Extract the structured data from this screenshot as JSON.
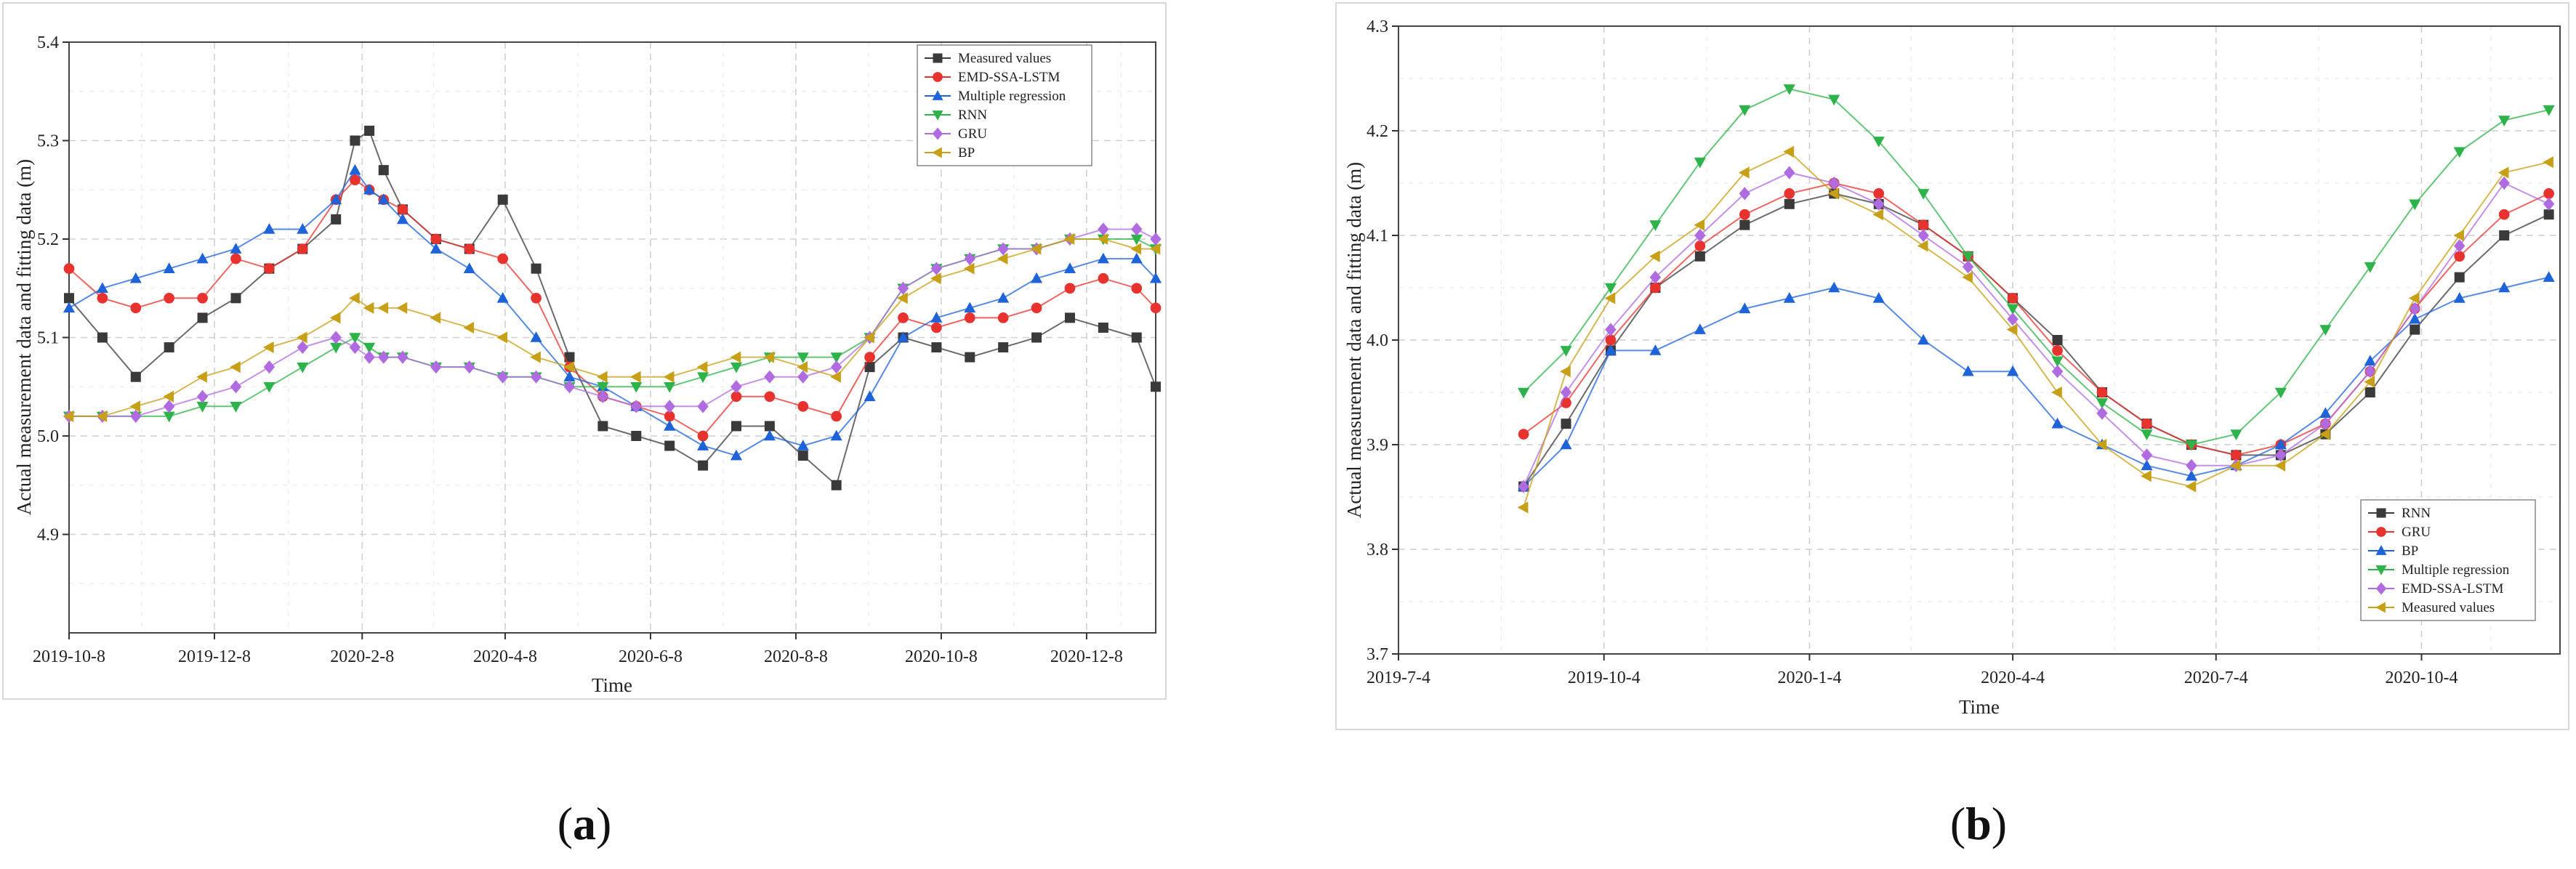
{
  "figure": {
    "captions": [
      "(a)",
      "(b)"
    ],
    "caption_letters": [
      "a",
      "b"
    ]
  },
  "chart_data": [
    {
      "type": "scatter",
      "panel": "a",
      "xlabel": "Time",
      "ylabel": "Actual measurement data and fitting data (m)",
      "xlim": [
        0,
        456
      ],
      "ylim": [
        4.8,
        5.4
      ],
      "x_ticks": [
        {
          "label": "2019-10-8",
          "value": 0
        },
        {
          "label": "2019-12-8",
          "value": 61
        },
        {
          "label": "2020-2-8",
          "value": 123
        },
        {
          "label": "2020-4-8",
          "value": 183
        },
        {
          "label": "2020-6-8",
          "value": 244
        },
        {
          "label": "2020-8-8",
          "value": 305
        },
        {
          "label": "2020-10-8",
          "value": 366
        },
        {
          "label": "2020-12-8",
          "value": 427
        }
      ],
      "y_ticks": [
        4.9,
        5.0,
        5.1,
        5.2,
        5.3,
        5.4
      ],
      "y_tick_labels": [
        "4.9",
        "5.0",
        "5.1",
        "5.2",
        "5.3",
        "5.4"
      ],
      "legend_position": "top-right",
      "series": [
        {
          "name": "Measured values",
          "marker": "square",
          "color": "#3a3a3a",
          "x": [
            0,
            14,
            28,
            42,
            56,
            70,
            84,
            98,
            112,
            120,
            126,
            132,
            140,
            154,
            168,
            182,
            196,
            210,
            224,
            238,
            252,
            266,
            280,
            294,
            308,
            322,
            336,
            350,
            364,
            378,
            392,
            406,
            420,
            434,
            448,
            456
          ],
          "y": [
            5.14,
            5.1,
            5.06,
            5.09,
            5.12,
            5.14,
            5.17,
            5.19,
            5.22,
            5.3,
            5.31,
            5.27,
            5.23,
            5.2,
            5.19,
            5.24,
            5.17,
            5.08,
            5.01,
            5.0,
            4.99,
            4.97,
            5.01,
            5.01,
            4.98,
            4.95,
            5.07,
            5.1,
            5.09,
            5.08,
            5.09,
            5.1,
            5.12,
            5.11,
            5.1,
            5.05
          ]
        },
        {
          "name": "EMD-SSA-LSTM",
          "marker": "circle",
          "color": "#e8322d",
          "x": [
            0,
            14,
            28,
            42,
            56,
            70,
            84,
            98,
            112,
            120,
            126,
            132,
            140,
            154,
            168,
            182,
            196,
            210,
            224,
            238,
            252,
            266,
            280,
            294,
            308,
            322,
            336,
            350,
            364,
            378,
            392,
            406,
            420,
            434,
            448,
            456
          ],
          "y": [
            5.17,
            5.14,
            5.13,
            5.14,
            5.14,
            5.18,
            5.17,
            5.19,
            5.24,
            5.26,
            5.25,
            5.24,
            5.23,
            5.2,
            5.19,
            5.18,
            5.14,
            5.07,
            5.04,
            5.03,
            5.02,
            5.0,
            5.04,
            5.04,
            5.03,
            5.02,
            5.08,
            5.12,
            5.11,
            5.12,
            5.12,
            5.13,
            5.15,
            5.16,
            5.15,
            5.13
          ]
        },
        {
          "name": "Multiple regression",
          "marker": "triangle-up",
          "color": "#1f63d8",
          "x": [
            0,
            14,
            28,
            42,
            56,
            70,
            84,
            98,
            112,
            120,
            126,
            132,
            140,
            154,
            168,
            182,
            196,
            210,
            224,
            238,
            252,
            266,
            280,
            294,
            308,
            322,
            336,
            350,
            364,
            378,
            392,
            406,
            420,
            434,
            448,
            456
          ],
          "y": [
            5.13,
            5.15,
            5.16,
            5.17,
            5.18,
            5.19,
            5.21,
            5.21,
            5.24,
            5.27,
            5.25,
            5.24,
            5.22,
            5.19,
            5.17,
            5.14,
            5.1,
            5.06,
            5.05,
            5.03,
            5.01,
            4.99,
            4.98,
            5.0,
            4.99,
            5.0,
            5.04,
            5.1,
            5.12,
            5.13,
            5.14,
            5.16,
            5.17,
            5.18,
            5.18,
            5.16
          ]
        },
        {
          "name": "RNN",
          "marker": "triangle-down",
          "color": "#2db34a",
          "x": [
            0,
            14,
            28,
            42,
            56,
            70,
            84,
            98,
            112,
            120,
            126,
            132,
            140,
            154,
            168,
            182,
            196,
            210,
            224,
            238,
            252,
            266,
            280,
            294,
            308,
            322,
            336,
            350,
            364,
            378,
            392,
            406,
            420,
            434,
            448,
            456
          ],
          "y": [
            5.02,
            5.02,
            5.02,
            5.02,
            5.03,
            5.03,
            5.05,
            5.07,
            5.09,
            5.1,
            5.09,
            5.08,
            5.08,
            5.07,
            5.07,
            5.06,
            5.06,
            5.05,
            5.05,
            5.05,
            5.05,
            5.06,
            5.07,
            5.08,
            5.08,
            5.08,
            5.1,
            5.15,
            5.17,
            5.18,
            5.19,
            5.19,
            5.2,
            5.2,
            5.2,
            5.19
          ]
        },
        {
          "name": "GRU",
          "marker": "diamond",
          "color": "#b06be0",
          "x": [
            0,
            14,
            28,
            42,
            56,
            70,
            84,
            98,
            112,
            120,
            126,
            132,
            140,
            154,
            168,
            182,
            196,
            210,
            224,
            238,
            252,
            266,
            280,
            294,
            308,
            322,
            336,
            350,
            364,
            378,
            392,
            406,
            420,
            434,
            448,
            456
          ],
          "y": [
            5.02,
            5.02,
            5.02,
            5.03,
            5.04,
            5.05,
            5.07,
            5.09,
            5.1,
            5.09,
            5.08,
            5.08,
            5.08,
            5.07,
            5.07,
            5.06,
            5.06,
            5.05,
            5.04,
            5.03,
            5.03,
            5.03,
            5.05,
            5.06,
            5.06,
            5.07,
            5.1,
            5.15,
            5.17,
            5.18,
            5.19,
            5.19,
            5.2,
            5.21,
            5.21,
            5.2
          ]
        },
        {
          "name": "BP",
          "marker": "triangle-left",
          "color": "#c8a017",
          "x": [
            0,
            14,
            28,
            42,
            56,
            70,
            84,
            98,
            112,
            120,
            126,
            132,
            140,
            154,
            168,
            182,
            196,
            210,
            224,
            238,
            252,
            266,
            280,
            294,
            308,
            322,
            336,
            350,
            364,
            378,
            392,
            406,
            420,
            434,
            448,
            456
          ],
          "y": [
            5.02,
            5.02,
            5.03,
            5.04,
            5.06,
            5.07,
            5.09,
            5.1,
            5.12,
            5.14,
            5.13,
            5.13,
            5.13,
            5.12,
            5.11,
            5.1,
            5.08,
            5.07,
            5.06,
            5.06,
            5.06,
            5.07,
            5.08,
            5.08,
            5.07,
            5.06,
            5.1,
            5.14,
            5.16,
            5.17,
            5.18,
            5.19,
            5.2,
            5.2,
            5.19,
            5.19
          ]
        }
      ]
    },
    {
      "type": "scatter",
      "panel": "b",
      "xlabel": "Time",
      "ylabel": "Actual measurement data and fitting data (m)",
      "xlim": [
        0,
        520
      ],
      "ylim": [
        3.7,
        4.3
      ],
      "x_ticks": [
        {
          "label": "2019-7-4",
          "value": 0
        },
        {
          "label": "2019-10-4",
          "value": 92
        },
        {
          "label": "2020-1-4",
          "value": 184
        },
        {
          "label": "2020-4-4",
          "value": 275
        },
        {
          "label": "2020-7-4",
          "value": 366
        },
        {
          "label": "2020-10-4",
          "value": 458
        }
      ],
      "y_ticks": [
        3.7,
        3.8,
        3.9,
        4.0,
        4.1,
        4.2,
        4.3
      ],
      "y_tick_labels": [
        "3.7",
        "3.8",
        "3.9",
        "4.0",
        "4.1",
        "4.2",
        "4.3"
      ],
      "legend_position": "bottom-right",
      "series": [
        {
          "name": "RNN",
          "marker": "square",
          "color": "#3a3a3a",
          "x": [
            56,
            75,
            95,
            115,
            135,
            155,
            175,
            195,
            215,
            235,
            255,
            275,
            295,
            315,
            335,
            355,
            375,
            395,
            415,
            435,
            455,
            475,
            495,
            515
          ],
          "y": [
            3.86,
            3.92,
            3.99,
            4.05,
            4.08,
            4.11,
            4.13,
            4.14,
            4.13,
            4.11,
            4.08,
            4.04,
            4.0,
            3.95,
            3.92,
            3.9,
            3.89,
            3.89,
            3.91,
            3.95,
            4.01,
            4.06,
            4.1,
            4.12
          ]
        },
        {
          "name": "GRU",
          "marker": "circle",
          "color": "#e8322d",
          "x": [
            56,
            75,
            95,
            115,
            135,
            155,
            175,
            195,
            215,
            235,
            255,
            275,
            295,
            315,
            335,
            355,
            375,
            395,
            415,
            435,
            455,
            475,
            495,
            515
          ],
          "y": [
            3.91,
            3.94,
            4.0,
            4.05,
            4.09,
            4.12,
            4.14,
            4.15,
            4.14,
            4.11,
            4.08,
            4.04,
            3.99,
            3.95,
            3.92,
            3.9,
            3.89,
            3.9,
            3.92,
            3.97,
            4.03,
            4.08,
            4.12,
            4.14
          ]
        },
        {
          "name": "BP",
          "marker": "triangle-up",
          "color": "#1f63d8",
          "x": [
            56,
            75,
            95,
            115,
            135,
            155,
            175,
            195,
            215,
            235,
            255,
            275,
            295,
            315,
            335,
            355,
            375,
            395,
            415,
            435,
            455,
            475,
            495,
            515
          ],
          "y": [
            3.86,
            3.9,
            3.99,
            3.99,
            4.01,
            4.03,
            4.04,
            4.05,
            4.04,
            4.0,
            3.97,
            3.97,
            3.92,
            3.9,
            3.88,
            3.87,
            3.88,
            3.9,
            3.93,
            3.98,
            4.02,
            4.04,
            4.05,
            4.06
          ]
        },
        {
          "name": "Multiple regression",
          "marker": "triangle-down",
          "color": "#2db34a",
          "x": [
            56,
            75,
            95,
            115,
            135,
            155,
            175,
            195,
            215,
            235,
            255,
            275,
            295,
            315,
            335,
            355,
            375,
            395,
            415,
            435,
            455,
            475,
            495,
            515
          ],
          "y": [
            3.95,
            3.99,
            4.05,
            4.11,
            4.17,
            4.22,
            4.24,
            4.23,
            4.19,
            4.14,
            4.08,
            4.03,
            3.98,
            3.94,
            3.91,
            3.9,
            3.91,
            3.95,
            4.01,
            4.07,
            4.13,
            4.18,
            4.21,
            4.22
          ]
        },
        {
          "name": "EMD-SSA-LSTM",
          "marker": "diamond",
          "color": "#b06be0",
          "x": [
            56,
            75,
            95,
            115,
            135,
            155,
            175,
            195,
            215,
            235,
            255,
            275,
            295,
            315,
            335,
            355,
            375,
            395,
            415,
            435,
            455,
            475,
            495,
            515
          ],
          "y": [
            3.86,
            3.95,
            4.01,
            4.06,
            4.1,
            4.14,
            4.16,
            4.15,
            4.13,
            4.1,
            4.07,
            4.02,
            3.97,
            3.93,
            3.89,
            3.88,
            3.88,
            3.89,
            3.92,
            3.97,
            4.03,
            4.09,
            4.15,
            4.13
          ]
        },
        {
          "name": "Measured values",
          "marker": "triangle-left",
          "color": "#c8a017",
          "x": [
            56,
            75,
            95,
            115,
            135,
            155,
            175,
            195,
            215,
            235,
            255,
            275,
            295,
            315,
            335,
            355,
            375,
            395,
            415,
            435,
            455,
            475,
            495,
            515
          ],
          "y": [
            3.84,
            3.97,
            4.04,
            4.08,
            4.11,
            4.16,
            4.18,
            4.14,
            4.12,
            4.09,
            4.06,
            4.01,
            3.95,
            3.9,
            3.87,
            3.86,
            3.88,
            3.88,
            3.91,
            3.96,
            4.04,
            4.1,
            4.16,
            4.17
          ]
        }
      ]
    }
  ]
}
